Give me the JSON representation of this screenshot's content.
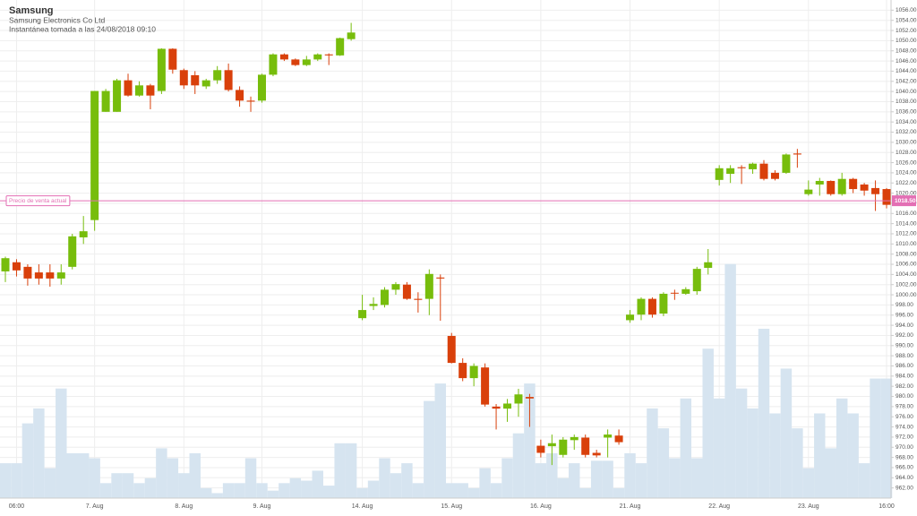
{
  "chart_data": {
    "type": "candlestick",
    "title": "Samsung",
    "subtitle": "Samsung Electronics Co Ltd",
    "note": "Instantánea tomada a las 24/08/2018 09:10",
    "up_color": "#77bd0c",
    "down_color": "#d9400b",
    "volume_color": "#d6e4f0",
    "grid": true,
    "categories": [
      null,
      "06:00",
      null,
      null,
      null,
      null,
      null,
      null,
      "7. Aug",
      null,
      null,
      null,
      null,
      null,
      null,
      null,
      "8. Aug",
      null,
      null,
      null,
      null,
      null,
      null,
      "9. Aug",
      null,
      null,
      null,
      null,
      null,
      null,
      null,
      null,
      "14. Aug",
      null,
      null,
      null,
      null,
      null,
      null,
      null,
      "15. Aug",
      null,
      null,
      null,
      null,
      null,
      null,
      null,
      "16. Aug",
      null,
      null,
      null,
      null,
      null,
      null,
      null,
      "21. Aug",
      null,
      null,
      null,
      null,
      null,
      null,
      null,
      "22. Aug",
      null,
      null,
      null,
      null,
      null,
      null,
      null,
      "23. Aug",
      null,
      null,
      null,
      null,
      null,
      null,
      "16:00"
    ],
    "open": [
      1004.6,
      1006.4,
      1005.5,
      1004.4,
      1004.4,
      1003.2,
      1005.5,
      1011.3,
      1014.7,
      1036,
      1036,
      1042.2,
      1039.2,
      1041.2,
      1040.1,
      1048.4,
      1044.2,
      1043.2,
      1041,
      1042.2,
      1044.2,
      1040.3,
      1038.2,
      1038.2,
      1043.3,
      1047.3,
      1046.3,
      1045.2,
      1046.3,
      1047.3,
      1047.1,
      1050.3,
      995.4,
      997.8,
      998,
      1001,
      1002,
      999.2,
      999.2,
      1003.4,
      991.9,
      986.6,
      983.6,
      985.7,
      978,
      977.6,
      978.6,
      979.9,
      970.3,
      970.2,
      968.5,
      971.4,
      971.9,
      968.9,
      971.9,
      972.3,
      995,
      996.1,
      999.2,
      996.3,
      1000.4,
      1000.2,
      1000.7,
      1005.3,
      1022.6,
      1023.8,
      1025.1,
      1024.7,
      1025.8,
      1024,
      1024,
      1027.8,
      1019.8,
      1021.7,
      1022.4,
      1019.8,
      1022.8,
      1021.7,
      1021,
      1020.8
    ],
    "high": [
      1007.5,
      1007,
      1006,
      1006,
      1006,
      1006,
      1012,
      1015.5,
      1040.1,
      1040.5,
      1042.5,
      1043.5,
      1042,
      1041.5,
      1048.5,
      1048.5,
      1044.5,
      1044,
      1042.5,
      1045,
      1045.5,
      1041,
      1039,
      1043.5,
      1047.5,
      1047.5,
      1046.5,
      1047,
      1047.5,
      1047.5,
      1050.6,
      1053.5,
      1000,
      999.5,
      1001.5,
      1002.5,
      1002.5,
      1000.5,
      1005,
      1004,
      992.5,
      987.5,
      986.5,
      986.5,
      978.5,
      979.5,
      981.5,
      980.5,
      971.5,
      972.5,
      972,
      972.5,
      972.5,
      969.5,
      973.5,
      973.5,
      997,
      999.5,
      999.5,
      1000.5,
      1001,
      1001.5,
      1005.5,
      1009,
      1025.5,
      1025.5,
      1025.5,
      1026,
      1026.5,
      1024.5,
      1027.8,
      1028.7,
      1022.5,
      1023,
      1022.5,
      1024,
      1023,
      1022,
      1022.5,
      1021
    ],
    "low": [
      1002.5,
      1003.6,
      1001.8,
      1002,
      1001.6,
      1002,
      1005,
      1010,
      1012.6,
      1036,
      1036,
      1039,
      1039,
      1036.5,
      1039.5,
      1043.5,
      1040.5,
      1039.5,
      1040.5,
      1041.5,
      1040,
      1037,
      1036,
      1037.8,
      1043,
      1046,
      1045,
      1045,
      1046,
      1045.2,
      1047,
      1050,
      995,
      997,
      997.5,
      1000,
      999,
      996.5,
      996,
      994.9,
      986.5,
      983,
      982,
      978,
      973.5,
      975,
      976,
      974,
      968,
      966.5,
      968,
      969.5,
      968,
      968,
      968,
      970.5,
      994.5,
      995,
      995.5,
      995.8,
      999,
      1000,
      1000,
      1004,
      1021.5,
      1022,
      1021.8,
      1023.8,
      1022.5,
      1022.5,
      1023.8,
      1025,
      1019.5,
      1019.5,
      1019.5,
      1019.5,
      1020,
      1019.5,
      1016.5,
      1017
    ],
    "close": [
      1007.2,
      1004.8,
      1003.2,
      1003.2,
      1003.2,
      1004.4,
      1011.5,
      1012.5,
      1040.1,
      1040.1,
      1042.2,
      1039.2,
      1041.2,
      1039.2,
      1048.4,
      1044.3,
      1041.2,
      1041.2,
      1042.2,
      1044.2,
      1040.3,
      1038.2,
      1038,
      1043.3,
      1047.3,
      1046.3,
      1045.2,
      1046.3,
      1047.3,
      1047.1,
      1050.5,
      1051.6,
      997,
      998.2,
      1001,
      1002.1,
      999.2,
      999,
      1004.1,
      1003.2,
      986.6,
      983.6,
      986,
      978.4,
      977.6,
      978.6,
      980.4,
      979.6,
      968.9,
      970.8,
      971.5,
      972,
      968.5,
      968.4,
      972.5,
      971,
      996.1,
      999.2,
      996.1,
      1000.2,
      1000.3,
      1001.1,
      1005.1,
      1006.4,
      1024.9,
      1024.9,
      1024.9,
      1025.8,
      1022.8,
      1022.8,
      1027.6,
      1027.6,
      1020.7,
      1022.4,
      1019.8,
      1022.8,
      1020.8,
      1020.5,
      1019.8,
      1017.7
    ],
    "volume": [
      7,
      7,
      15,
      18,
      6,
      22,
      9,
      9,
      8,
      3,
      5,
      5,
      3,
      4,
      10,
      8,
      5,
      9,
      2,
      1,
      3,
      3,
      8,
      3,
      1.5,
      3,
      4,
      3.5,
      5.5,
      2.5,
      11,
      11,
      2,
      3.5,
      8,
      5,
      7,
      3,
      19.5,
      23,
      3,
      3,
      2,
      6,
      3,
      8,
      13,
      23,
      7,
      9,
      4,
      7,
      2,
      7.5,
      7.5,
      2,
      9,
      7,
      18,
      14,
      8,
      20,
      8,
      30,
      20,
      47,
      22,
      18,
      34,
      17,
      26,
      14,
      6,
      17,
      10,
      20,
      17,
      7,
      24,
      24
    ],
    "ylim": [
      960,
      1058
    ],
    "y2lim": [
      0,
      100
    ],
    "yticks": [
      {
        "value": 962,
        "label": "962.00"
      },
      {
        "value": 964,
        "label": "964.00"
      },
      {
        "value": 966,
        "label": "966.00"
      },
      {
        "value": 968,
        "label": "968.00"
      },
      {
        "value": 970,
        "label": "970.00"
      },
      {
        "value": 972,
        "label": "972.00"
      },
      {
        "value": 974,
        "label": "974.00"
      },
      {
        "value": 976,
        "label": "976.00"
      },
      {
        "value": 978,
        "label": "978.00"
      },
      {
        "value": 980,
        "label": "980.00"
      },
      {
        "value": 982,
        "label": "982.00"
      },
      {
        "value": 984,
        "label": "984.00"
      },
      {
        "value": 986,
        "label": "986.00"
      },
      {
        "value": 988,
        "label": "988.00"
      },
      {
        "value": 990,
        "label": "990.00"
      },
      {
        "value": 992,
        "label": "992.00"
      },
      {
        "value": 994,
        "label": "994.00"
      },
      {
        "value": 996,
        "label": "996.00"
      },
      {
        "value": 998,
        "label": "998.00"
      },
      {
        "value": 1000,
        "label": "1000.00"
      },
      {
        "value": 1002,
        "label": "1002.00"
      },
      {
        "value": 1004,
        "label": "1004.00"
      },
      {
        "value": 1006,
        "label": "1006.00"
      },
      {
        "value": 1008,
        "label": "1008.00"
      },
      {
        "value": 1010,
        "label": "1010.00"
      },
      {
        "value": 1012,
        "label": "1012.00"
      },
      {
        "value": 1014,
        "label": "1014.00"
      },
      {
        "value": 1016,
        "label": "1016.00"
      },
      {
        "value": 1018,
        "label": "1018.00"
      },
      {
        "value": 1020,
        "label": "1020.00"
      },
      {
        "value": 1022,
        "label": "1022.00"
      },
      {
        "value": 1024,
        "label": "1024.00"
      },
      {
        "value": 1026,
        "label": "1026.00"
      },
      {
        "value": 1028,
        "label": "1028.00"
      },
      {
        "value": 1030,
        "label": "1030.00"
      },
      {
        "value": 1032,
        "label": "1032.00"
      },
      {
        "value": 1034,
        "label": "1034.00"
      },
      {
        "value": 1036,
        "label": "1036.00"
      },
      {
        "value": 1038,
        "label": "1038.00"
      },
      {
        "value": 1040,
        "label": "1040.00"
      },
      {
        "value": 1042,
        "label": "1042.00"
      },
      {
        "value": 1044,
        "label": "1044.00"
      },
      {
        "value": 1046,
        "label": "1046.00"
      },
      {
        "value": 1048,
        "label": "1048.00"
      },
      {
        "value": 1050,
        "label": "1050.00"
      },
      {
        "value": 1052,
        "label": "1052.00"
      },
      {
        "value": 1054,
        "label": "1054.00"
      },
      {
        "value": 1056,
        "label": "1056.00"
      }
    ],
    "current_price": {
      "value": 1018.5,
      "label": "1018.50",
      "text": "Precio de venta actual",
      "color": "#e36fb4"
    }
  }
}
